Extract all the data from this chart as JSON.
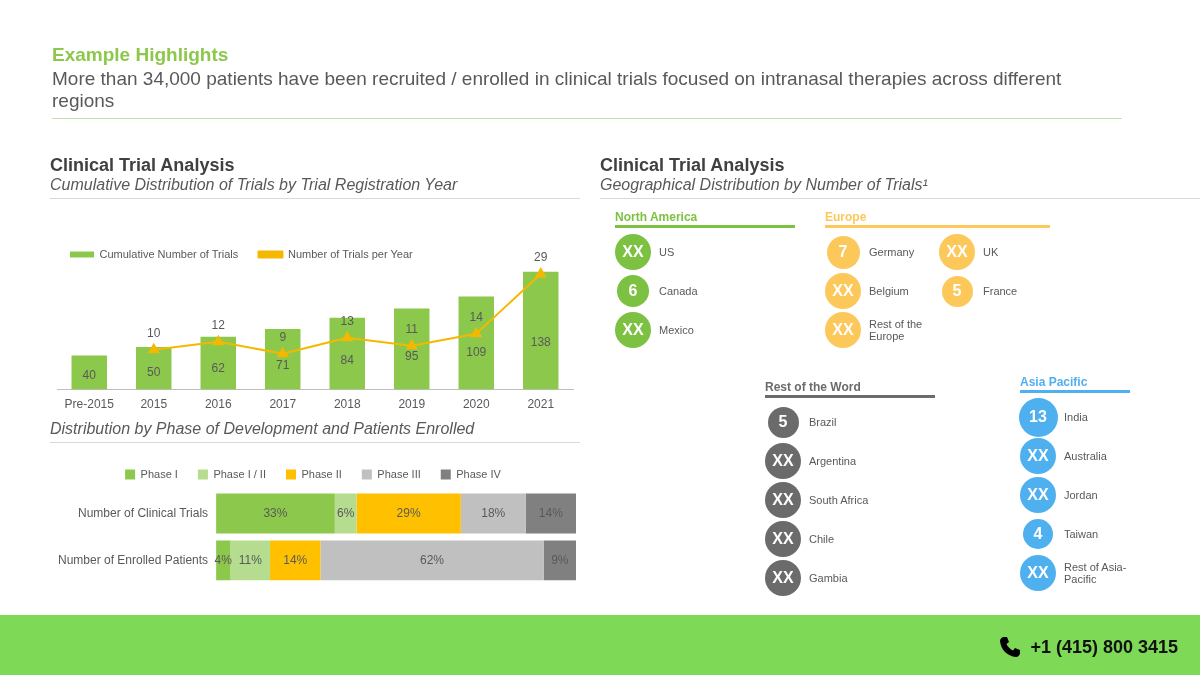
{
  "chart_data": [
    {
      "type": "bar",
      "title": "Clinical Trial Analysis",
      "subtitle": "Cumulative Distribution of Trials by Trial Registration Year",
      "annotations": [
        "Example Highlights",
        "More than 34,000 patients have been recruited / enrolled in clinical trials focused on intranasal therapies across different regions",
        "+1 (415) 800 3415"
      ],
      "categories": [
        "Pre-2015",
        "2015",
        "2016",
        "2017",
        "2018",
        "2019",
        "2020",
        "2021"
      ],
      "series": [
        {
          "name": "Cumulative Number of Trials",
          "type": "bar",
          "color": "#8cc84b",
          "values": [
            40,
            50,
            62,
            71,
            84,
            95,
            109,
            138
          ]
        },
        {
          "name": "Number of Trials per Year",
          "type": "line",
          "axis": "y2",
          "color": "#f5b800",
          "values": [
            null,
            10,
            12,
            9,
            13,
            11,
            14,
            29
          ]
        }
      ],
      "marker": "triangle",
      "data_labels": true,
      "legend": "top left"
    },
    {
      "type": "bar",
      "orientation": "horizontal",
      "stacked": true,
      "title": "Distribution by Phase of Development and Patients Enrolled",
      "categories": [
        "Number of Clinical Trials",
        "Number of Enrolled Patients"
      ],
      "series": [
        {
          "name": "Phase I",
          "color": "#8cc84b",
          "values": [
            33,
            4
          ],
          "value_labels": [
            "33%",
            "4%"
          ]
        },
        {
          "name": "Phase I / II",
          "color": "#b5dc8f",
          "values": [
            6,
            11
          ],
          "value_labels": [
            "6%",
            "11%"
          ]
        },
        {
          "name": "Phase II",
          "color": "#ffc000",
          "values": [
            29,
            14
          ],
          "value_labels": [
            "29%",
            "14%"
          ]
        },
        {
          "name": "Phase III",
          "color": "#c0c0c0",
          "values": [
            18,
            62
          ],
          "value_labels": [
            "18%",
            "62%"
          ]
        },
        {
          "name": "Phase IV",
          "color": "#808080",
          "values": [
            14,
            9
          ],
          "value_labels": [
            "14%",
            "9%"
          ]
        }
      ],
      "legend": "top"
    },
    {
      "type": "other",
      "title": "Clinical Trial Analysis",
      "subtitle": "Geographical Distribution by Number of Trials¹",
      "categories": [
        "US",
        "Canada",
        "Mexico",
        "Germany",
        "UK",
        "Belgium",
        "France",
        "Rest of the Europe",
        "Brazil",
        "Argentina",
        "South Africa",
        "Chile",
        "Gambia",
        "India",
        "Australia",
        "Jordan",
        "Taiwan",
        "Rest of Asia-Pacific"
      ],
      "series": [
        {
          "name": "North America",
          "color": "#7dc142",
          "values": [
            null,
            6,
            null,
            null,
            null,
            null,
            null,
            null,
            null,
            null,
            null,
            null,
            null,
            null,
            null,
            null,
            null,
            null
          ],
          "value_labels": [
            "XX",
            "6",
            "XX",
            null,
            null,
            null,
            null,
            null,
            null,
            null,
            null,
            null,
            null,
            null,
            null,
            null,
            null,
            null
          ]
        },
        {
          "name": "Europe",
          "color": "#fcc85a",
          "values": [
            null,
            null,
            null,
            7,
            null,
            null,
            5,
            null,
            null,
            null,
            null,
            null,
            null,
            null,
            null,
            null,
            null,
            null
          ],
          "value_labels": [
            null,
            null,
            null,
            "7",
            "XX",
            "XX",
            "5",
            "XX",
            null,
            null,
            null,
            null,
            null,
            null,
            null,
            null,
            null,
            null
          ]
        },
        {
          "name": "Rest of the Word",
          "color": "#6b6b6b",
          "values": [
            null,
            null,
            null,
            null,
            null,
            null,
            null,
            null,
            5,
            null,
            null,
            null,
            null,
            null,
            null,
            null,
            null,
            null
          ],
          "value_labels": [
            null,
            null,
            null,
            null,
            null,
            null,
            null,
            null,
            "5",
            "XX",
            "XX",
            "XX",
            "XX",
            null,
            null,
            null,
            null,
            null
          ]
        },
        {
          "name": "Asia Pacific",
          "color": "#4fb0f0",
          "values": [
            null,
            null,
            null,
            null,
            null,
            null,
            null,
            null,
            null,
            null,
            null,
            null,
            null,
            13,
            null,
            null,
            4,
            null
          ],
          "value_labels": [
            null,
            null,
            null,
            null,
            null,
            null,
            null,
            null,
            null,
            null,
            null,
            null,
            null,
            "13",
            "XX",
            "XX",
            "4",
            "XX"
          ]
        }
      ]
    }
  ]
}
